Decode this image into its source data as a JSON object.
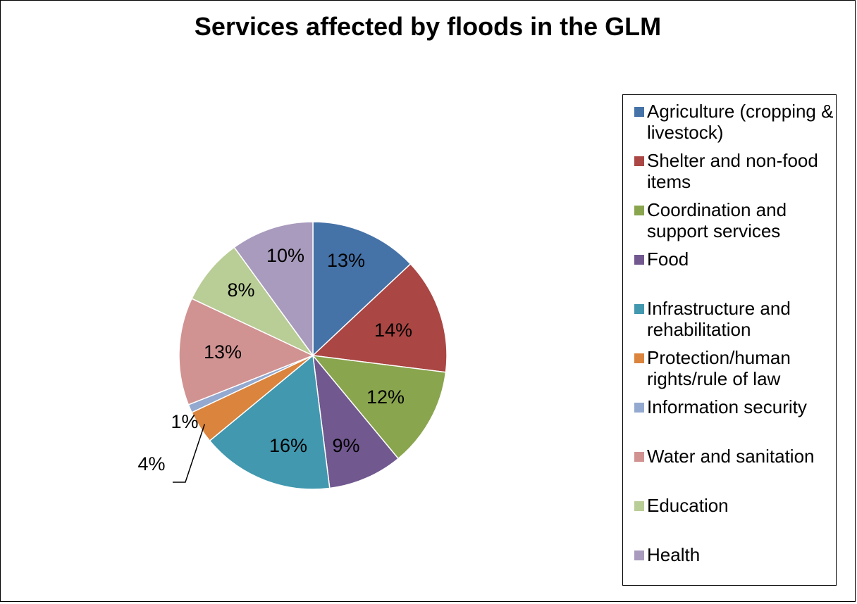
{
  "chart_data": {
    "type": "pie",
    "title": "Services affected by floods in the GLM",
    "legend_position": "right",
    "slices": [
      {
        "name": "Agriculture (cropping & livestock)",
        "value": 13,
        "label": "13%",
        "color": "#4572A7"
      },
      {
        "name": "Shelter and non-food items",
        "value": 14,
        "label": "14%",
        "color": "#AA4643"
      },
      {
        "name": "Coordination and support services",
        "value": 12,
        "label": "12%",
        "color": "#89A54E"
      },
      {
        "name": "Food",
        "value": 9,
        "label": "9%",
        "color": "#71588F"
      },
      {
        "name": "Infrastructure and rehabilitation",
        "value": 16,
        "label": "16%",
        "color": "#4198AF"
      },
      {
        "name": "Protection/human rights/rule of law",
        "value": 4,
        "label": "4%",
        "color": "#DB843D"
      },
      {
        "name": "Information security",
        "value": 1,
        "label": "1%",
        "color": "#93A9CF"
      },
      {
        "name": "Water and sanitation",
        "value": 13,
        "label": "13%",
        "color": "#D19392"
      },
      {
        "name": "Education",
        "value": 8,
        "label": "8%",
        "color": "#B9CD96"
      },
      {
        "name": "Health",
        "value": 10,
        "label": "10%",
        "color": "#A99BBD"
      }
    ]
  }
}
